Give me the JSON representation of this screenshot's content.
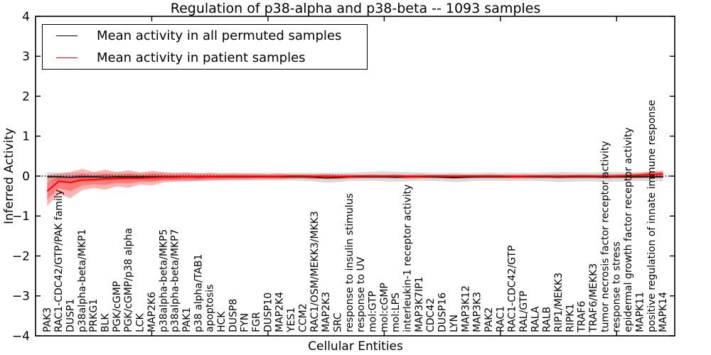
{
  "title": "Regulation of p38-alpha and p38-beta -- 1093 samples",
  "axes": {
    "xlabel": "Cellular Entities",
    "ylabel": "Inferred Activity",
    "yticks": [
      "4",
      "3",
      "2",
      "1",
      "0",
      "−1",
      "−2",
      "−3",
      "−4"
    ]
  },
  "legend": {
    "entries": [
      {
        "label": "Mean activity in all permuted samples",
        "color": "#000000"
      },
      {
        "label": "Mean activity in patient samples",
        "color": "#ff0000"
      }
    ]
  },
  "chart_data": {
    "type": "line",
    "title": "Regulation of p38-alpha and p38-beta -- 1093 samples",
    "xlabel": "Cellular Entities",
    "ylabel": "Inferred Activity",
    "ylim": [
      -4,
      4
    ],
    "grid": false,
    "legend_position": "upper left",
    "zero_line": {
      "style": "dotted",
      "color": "#000000",
      "y": 0
    },
    "categories": [
      "PAK3",
      "RAC1-CDC42/GTP/PAK family",
      "DUSP1",
      "p38alpha-beta/MKP1",
      "PRKG1",
      "BLK",
      "PGK/cGMP",
      "PGK/cGMP/p38 alpha",
      "LCK",
      "MAP2K6",
      "p38alpha-beta/MKP5",
      "p38alpha-beta/MKP7",
      "PAK1",
      "p38 alpha/TAB1",
      "apoptosis",
      "HCK",
      "DUSP8",
      "FYN",
      "FGR",
      "DUSP10",
      "MAP2K4",
      "YES1",
      "CCM2",
      "RAC1/OSM/MEKK3/MKK3",
      "MAP2K3",
      "SRC",
      "response to insulin stimulus",
      "response to UV",
      "mol:GTP",
      "mol:cGMP",
      "mol:LPS",
      "interleukin-1 receptor activity",
      "MAP3K7IP1",
      "CDC42",
      "DUSP16",
      "LYN",
      "MAP3K12",
      "MAP3K3",
      "PAK2",
      "RAC1",
      "RAC1-CDC42/GTP",
      "RAL/GTP",
      "RALA",
      "RALB",
      "RIP1/MEKK3",
      "RIPK1",
      "TRAF6",
      "TRAF6/MEKK3",
      "tumor necrosis factor receptor activity",
      "response to stress",
      "epidermal growth factor receptor activity",
      "MAPK11",
      "positive regulation of innate immune response",
      "MAPK14"
    ],
    "series": [
      {
        "name": "Mean activity in all permuted samples",
        "color": "#000000",
        "values": [
          -0.02,
          -0.02,
          -0.03,
          -0.02,
          -0.02,
          -0.03,
          -0.02,
          -0.02,
          -0.02,
          -0.02,
          -0.02,
          -0.02,
          -0.02,
          -0.03,
          -0.02,
          -0.02,
          -0.02,
          -0.02,
          -0.02,
          -0.02,
          -0.02,
          -0.02,
          -0.02,
          -0.03,
          -0.05,
          -0.04,
          -0.02,
          -0.02,
          -0.02,
          -0.02,
          -0.03,
          -0.02,
          -0.02,
          -0.02,
          -0.03,
          -0.04,
          -0.03,
          -0.02,
          -0.02,
          -0.02,
          -0.02,
          -0.02,
          -0.02,
          -0.02,
          -0.03,
          -0.02,
          -0.02,
          -0.02,
          -0.03,
          -0.02,
          -0.02,
          -0.02,
          -0.02,
          -0.02
        ]
      },
      {
        "name": "Mean activity in patient samples",
        "color": "#ff0000",
        "values": [
          -0.38,
          -0.13,
          -0.16,
          -0.1,
          -0.09,
          -0.07,
          -0.06,
          -0.05,
          -0.05,
          -0.04,
          -0.03,
          -0.03,
          -0.02,
          -0.02,
          -0.02,
          -0.01,
          -0.01,
          -0.01,
          -0.01,
          -0.01,
          -0.01,
          0.0,
          0.0,
          -0.01,
          -0.01,
          -0.02,
          -0.01,
          0.0,
          0.0,
          0.0,
          0.0,
          -0.01,
          -0.01,
          0.0,
          0.0,
          -0.01,
          0.0,
          0.0,
          0.0,
          0.0,
          -0.01,
          -0.01,
          0.0,
          0.0,
          -0.01,
          0.0,
          0.0,
          0.0,
          -0.01,
          0.0,
          0.01,
          0.02,
          0.04,
          0.05
        ]
      }
    ],
    "bands": [
      {
        "name": "permuted-range",
        "color": "#000000",
        "opacity": 0.14,
        "upper": [
          0.1,
          0.09,
          0.08,
          0.08,
          0.08,
          0.08,
          0.08,
          0.08,
          0.08,
          0.08,
          0.08,
          0.08,
          0.08,
          0.08,
          0.08,
          0.08,
          0.08,
          0.08,
          0.08,
          0.08,
          0.08,
          0.08,
          0.08,
          0.08,
          0.08,
          0.08,
          0.09,
          0.1,
          0.11,
          0.12,
          0.11,
          0.1,
          0.09,
          0.08,
          0.08,
          0.08,
          0.08,
          0.08,
          0.09,
          0.08,
          0.08,
          0.08,
          0.08,
          0.09,
          0.1,
          0.1,
          0.09,
          0.09,
          0.1,
          0.1,
          0.1,
          0.1,
          0.1,
          0.1
        ],
        "lower": [
          -0.13,
          -0.12,
          -0.12,
          -0.11,
          -0.11,
          -0.11,
          -0.11,
          -0.11,
          -0.11,
          -0.11,
          -0.11,
          -0.11,
          -0.12,
          -0.12,
          -0.11,
          -0.11,
          -0.11,
          -0.11,
          -0.11,
          -0.11,
          -0.11,
          -0.11,
          -0.12,
          -0.13,
          -0.17,
          -0.15,
          -0.12,
          -0.12,
          -0.12,
          -0.13,
          -0.14,
          -0.13,
          -0.12,
          -0.12,
          -0.13,
          -0.15,
          -0.14,
          -0.12,
          -0.12,
          -0.12,
          -0.12,
          -0.12,
          -0.12,
          -0.13,
          -0.15,
          -0.14,
          -0.13,
          -0.13,
          -0.15,
          -0.14,
          -0.13,
          -0.12,
          -0.13,
          -0.13
        ]
      },
      {
        "name": "patient-range",
        "color": "#ff0000",
        "opacity": 0.3,
        "upper": [
          0.03,
          0.06,
          0.1,
          0.18,
          0.1,
          0.16,
          0.1,
          0.15,
          0.09,
          0.13,
          0.1,
          0.08,
          0.09,
          0.07,
          0.08,
          0.06,
          0.07,
          0.06,
          0.06,
          0.05,
          0.06,
          0.05,
          0.05,
          0.05,
          0.06,
          0.05,
          0.05,
          0.04,
          0.05,
          0.04,
          0.05,
          0.04,
          0.05,
          0.04,
          0.04,
          0.05,
          0.04,
          0.04,
          0.05,
          0.04,
          0.04,
          0.05,
          0.04,
          0.04,
          0.05,
          0.04,
          0.05,
          0.04,
          0.05,
          0.05,
          0.06,
          0.08,
          0.12,
          0.14
        ],
        "lower": [
          -0.75,
          -0.45,
          -0.55,
          -0.35,
          -0.3,
          -0.34,
          -0.26,
          -0.29,
          -0.21,
          -0.23,
          -0.16,
          -0.14,
          -0.13,
          -0.12,
          -0.11,
          -0.1,
          -0.09,
          -0.09,
          -0.08,
          -0.08,
          -0.08,
          -0.07,
          -0.07,
          -0.08,
          -0.07,
          -0.08,
          -0.07,
          -0.06,
          -0.06,
          -0.06,
          -0.06,
          -0.07,
          -0.06,
          -0.06,
          -0.06,
          -0.07,
          -0.06,
          -0.06,
          -0.06,
          -0.06,
          -0.06,
          -0.06,
          -0.06,
          -0.06,
          -0.06,
          -0.06,
          -0.06,
          -0.06,
          -0.06,
          -0.06,
          -0.06,
          -0.06,
          -0.05,
          -0.05
        ]
      }
    ]
  }
}
